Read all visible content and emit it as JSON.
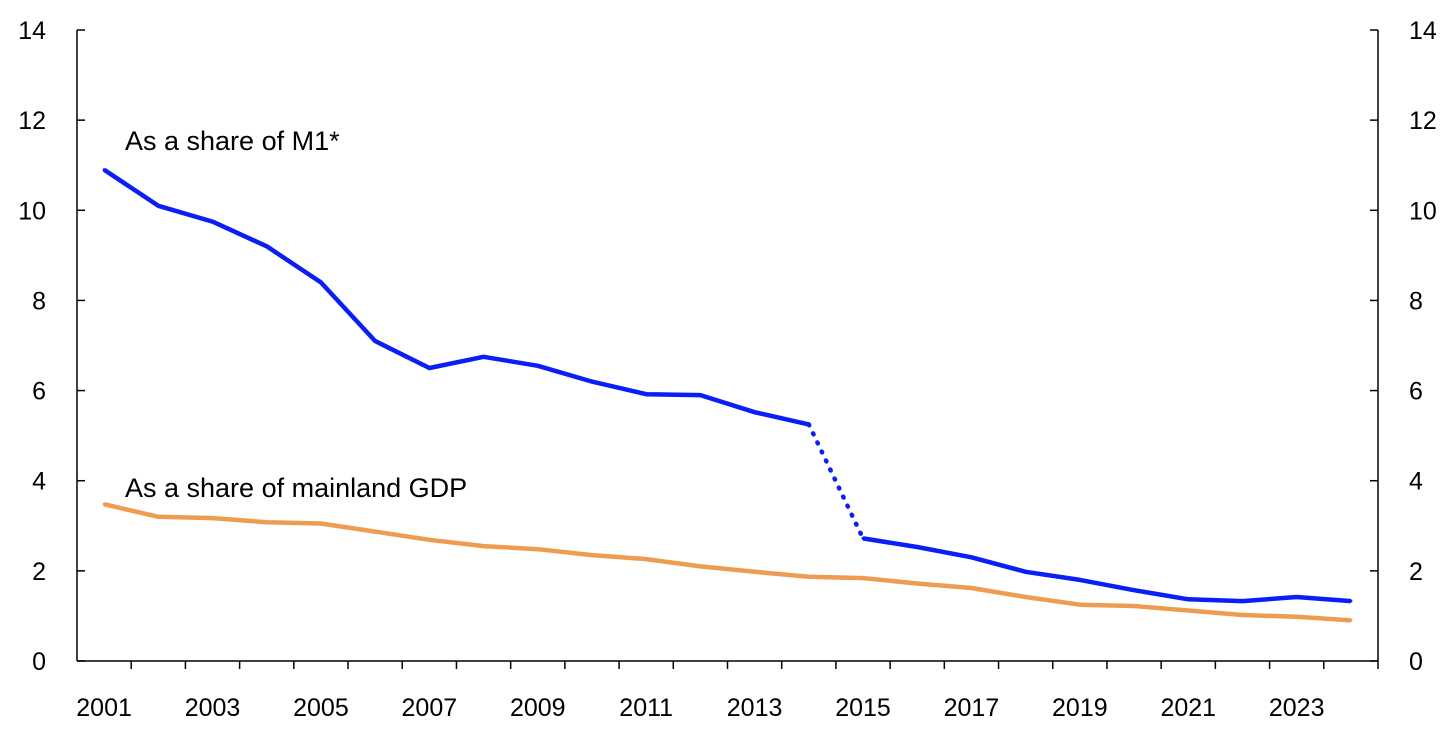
{
  "chart_data": {
    "type": "line",
    "title": "",
    "xlabel": "",
    "ylabel": "",
    "x": [
      2001,
      2002,
      2003,
      2004,
      2005,
      2006,
      2007,
      2008,
      2009,
      2010,
      2011,
      2012,
      2013,
      2014,
      2015,
      2016,
      2017,
      2018,
      2019,
      2020,
      2021,
      2022,
      2023,
      2024
    ],
    "x_tick_labels": [
      "2001",
      "2003",
      "2005",
      "2007",
      "2009",
      "2011",
      "2013",
      "2015",
      "2017",
      "2019",
      "2021",
      "2023"
    ],
    "y_tick_labels": [
      "0",
      "2",
      "4",
      "6",
      "8",
      "10",
      "12",
      "14"
    ],
    "ylim": [
      0,
      14
    ],
    "grid": false,
    "legend": "none",
    "secondary_y_axis": {
      "ylim": [
        0,
        14
      ],
      "tick_labels": [
        "0",
        "2",
        "4",
        "6",
        "8",
        "10",
        "12",
        "14"
      ]
    },
    "series": [
      {
        "label": "As a share of M1*",
        "color": "#0a1ef5",
        "values": [
          10.9,
          10.1,
          9.75,
          9.2,
          8.4,
          7.1,
          6.5,
          6.75,
          6.55,
          6.2,
          5.92,
          5.9,
          5.52,
          5.25,
          2.72,
          2.53,
          2.3,
          1.98,
          1.8,
          1.57,
          1.37,
          1.33,
          1.42,
          1.33
        ],
        "dotted_segment": [
          2014,
          2015
        ]
      },
      {
        "label": "As a share of mainland GDP",
        "color": "#ef9c52",
        "values": [
          3.48,
          3.2,
          3.17,
          3.08,
          3.05,
          2.87,
          2.69,
          2.55,
          2.48,
          2.35,
          2.26,
          2.1,
          1.98,
          1.87,
          1.84,
          1.72,
          1.62,
          1.42,
          1.25,
          1.22,
          1.12,
          1.02,
          0.98,
          0.9
        ]
      }
    ]
  }
}
